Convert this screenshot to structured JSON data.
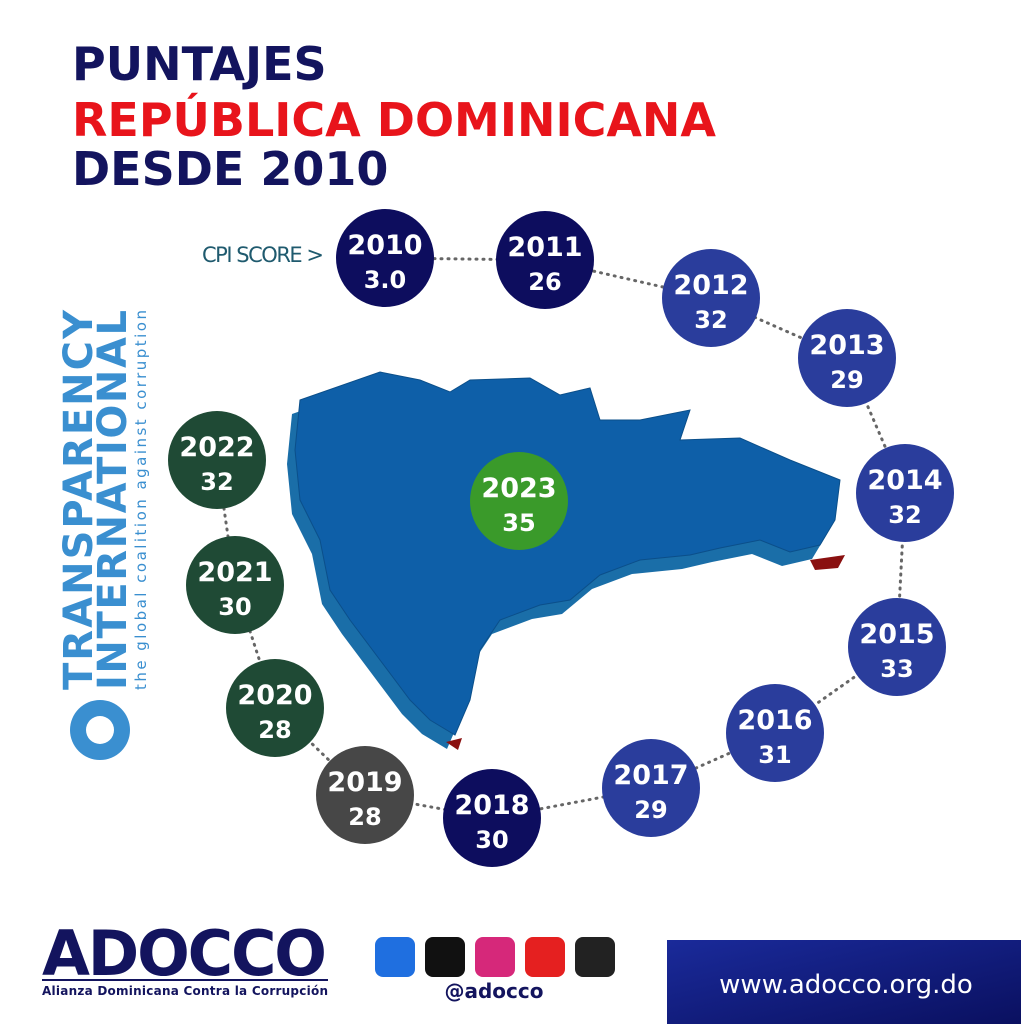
{
  "header": {
    "line1": "PUNTAJES",
    "line2": "REPÚBLICA DOMINICANA",
    "line3": "DESDE 2010"
  },
  "cpi_label": "CPI SCORE >",
  "nodes": [
    {
      "year": "2010",
      "score": "3.0"
    },
    {
      "year": "2011",
      "score": "26"
    },
    {
      "year": "2012",
      "score": "32"
    },
    {
      "year": "2013",
      "score": "29"
    },
    {
      "year": "2014",
      "score": "32"
    },
    {
      "year": "2015",
      "score": "33"
    },
    {
      "year": "2016",
      "score": "31"
    },
    {
      "year": "2017",
      "score": "29"
    },
    {
      "year": "2018",
      "score": "30"
    },
    {
      "year": "2019",
      "score": "28"
    },
    {
      "year": "2020",
      "score": "28"
    },
    {
      "year": "2021",
      "score": "30"
    },
    {
      "year": "2022",
      "score": "32"
    },
    {
      "year": "2023",
      "score": "35"
    }
  ],
  "transparency": {
    "line1": "TRANSPARENCY",
    "line2": "INTERNATIONAL",
    "tagline": "the global coalition against corruption"
  },
  "footer": {
    "logo": "ADOCCO",
    "logo_subtitle": "Alianza Dominicana Contra la Corrupción",
    "handle": "@adocco",
    "website": "www.adocco.org.do"
  }
}
